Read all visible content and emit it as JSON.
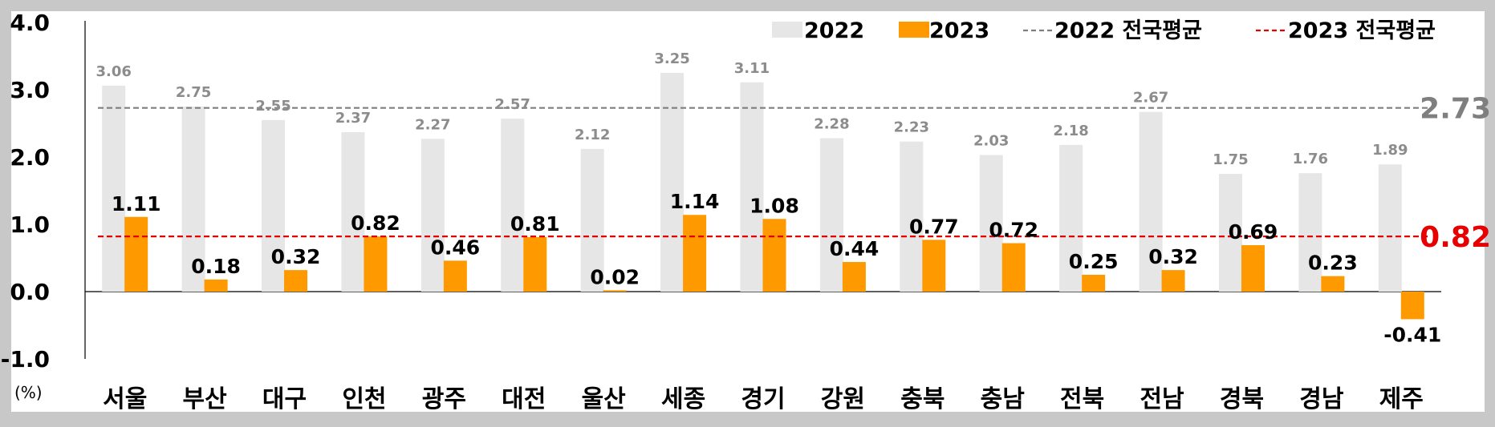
{
  "chart_data": {
    "type": "bar",
    "categories": [
      "서울",
      "부산",
      "대구",
      "인천",
      "광주",
      "대전",
      "울산",
      "세종",
      "경기",
      "강원",
      "충북",
      "충남",
      "전북",
      "전남",
      "경북",
      "경남",
      "제주"
    ],
    "series": [
      {
        "name": "2022",
        "color": "#e6e6e6",
        "values": [
          3.06,
          2.75,
          2.55,
          2.37,
          2.27,
          2.57,
          2.12,
          3.25,
          3.11,
          2.28,
          2.23,
          2.03,
          2.18,
          2.67,
          1.75,
          1.76,
          1.89
        ]
      },
      {
        "name": "2023",
        "color": "#ff9900",
        "values": [
          1.11,
          0.18,
          0.32,
          0.82,
          0.46,
          0.81,
          0.02,
          1.14,
          1.08,
          0.44,
          0.77,
          0.72,
          0.25,
          0.32,
          0.69,
          0.23,
          -0.41
        ]
      }
    ],
    "reference_lines": [
      {
        "name": "2022 전국평균",
        "value": 2.73,
        "label": "2.73",
        "color": "#7f7f7f"
      },
      {
        "name": "2023 전국평균",
        "value": 0.82,
        "label": "0.82",
        "color": "#e60000"
      }
    ],
    "y_ticks": [
      "4.0",
      "3.0",
      "2.0",
      "1.0",
      "0.0",
      "-1.0"
    ],
    "ylim": [
      -1.0,
      4.0
    ],
    "ylabel": "(%)",
    "legend_position": "top-right",
    "grid": false
  }
}
